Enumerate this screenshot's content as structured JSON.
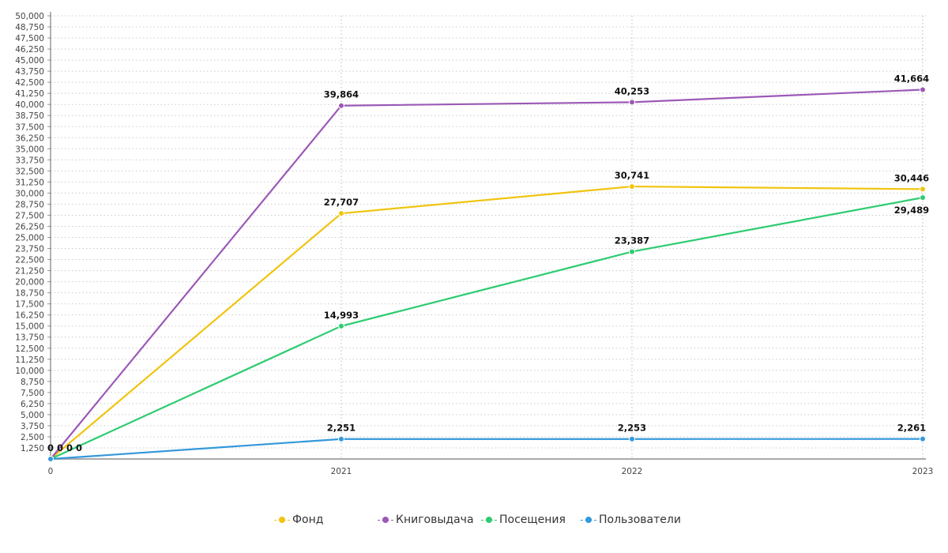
{
  "chart_data": {
    "type": "line",
    "title": "",
    "xlabel": "",
    "ylabel": "",
    "categories": [
      "0",
      "2021",
      "2022",
      "2023"
    ],
    "ylim": [
      0,
      50000
    ],
    "ytick_step": 1250,
    "grid": true,
    "legend_position": "bottom",
    "series": [
      {
        "name": "Фонд",
        "color": "#f1c40f",
        "values": [
          0,
          27707,
          30741,
          30446
        ],
        "labels": [
          "0",
          "27,707",
          "30,741",
          "30,446"
        ]
      },
      {
        "name": "Книговыдача",
        "color": "#9b59b6",
        "values": [
          0,
          39864,
          40253,
          41664
        ],
        "labels": [
          "0",
          "39,864",
          "40,253",
          "41,664"
        ]
      },
      {
        "name": "Посещения",
        "color": "#2ecc71",
        "values": [
          0,
          14993,
          23387,
          29489
        ],
        "labels": [
          "0",
          "14,993",
          "23,387",
          "29,489"
        ]
      },
      {
        "name": "Пользователи",
        "color": "#3498db",
        "values": [
          0,
          2251,
          2253,
          2261
        ],
        "labels": [
          "0",
          "2,251",
          "2,253",
          "2,261"
        ]
      }
    ]
  }
}
